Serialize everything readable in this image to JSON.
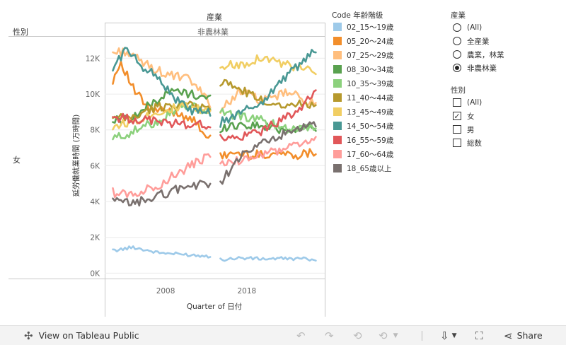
{
  "header": {
    "column_dim_title": "産業",
    "column_dim_value": "非農林業",
    "row_dim_title": "性別",
    "row_dim_value": "女"
  },
  "legend": {
    "title": "Code 年齢階級",
    "items": [
      {
        "label": "02_15～19歳",
        "color": "#9ecae9"
      },
      {
        "label": "05_20～24歳",
        "color": "#f28e2b"
      },
      {
        "label": "07_25～29歳",
        "color": "#ffbe7d"
      },
      {
        "label": "08_30～34歳",
        "color": "#59a14f"
      },
      {
        "label": "10_35～39歳",
        "color": "#8cd17d"
      },
      {
        "label": "11_40～44歳",
        "color": "#b6992d"
      },
      {
        "label": "13_45～49歳",
        "color": "#f1ce63"
      },
      {
        "label": "14_50～54歳",
        "color": "#499894"
      },
      {
        "label": "16_55～59歳",
        "color": "#e15759"
      },
      {
        "label": "17_60～64歳",
        "color": "#ff9d9a"
      },
      {
        "label": "18_65歳以上",
        "color": "#79706e"
      }
    ]
  },
  "filters": {
    "industry": {
      "title": "産業",
      "options": [
        {
          "label": "(All)",
          "selected": false
        },
        {
          "label": "全産業",
          "selected": false
        },
        {
          "label": "農業，林業",
          "selected": false
        },
        {
          "label": "非農林業",
          "selected": true
        }
      ]
    },
    "gender": {
      "title": "性別",
      "options": [
        {
          "label": "(All)",
          "checked": false
        },
        {
          "label": "女",
          "checked": true
        },
        {
          "label": "男",
          "checked": false
        },
        {
          "label": "総数",
          "checked": false
        }
      ]
    }
  },
  "toolbar": {
    "view_label": "View on Tableau Public",
    "share_label": "Share",
    "icons": [
      "tableau-logo-icon",
      "undo-icon",
      "redo-icon",
      "revert-icon",
      "dropdown-icon",
      "download-icon",
      "fullscreen-icon",
      "share-icon"
    ]
  },
  "chart_data": {
    "type": "line",
    "xlabel": "Quarter of 日付",
    "ylabel": "延労働就業時間 (万時間)",
    "x_tick_labels": [
      "2008",
      "2018"
    ],
    "x_ticks": [
      2008,
      2018
    ],
    "xlim": [
      2000.5,
      2027.6
    ],
    "ylim": [
      -300,
      13200
    ],
    "y_tick_values": [
      0,
      2000,
      4000,
      6000,
      8000,
      10000,
      12000
    ],
    "y_tick_labels": [
      "0K",
      "2K",
      "4K",
      "6K",
      "8K",
      "10K",
      "12K"
    ],
    "gap": [
      2013.5,
      2014.75
    ],
    "x_start": 2001.5,
    "x_end": 2026.5,
    "series": [
      {
        "name": "02_15～19歳",
        "color": "#9ecae9",
        "x": [
          2001.5,
          2004,
          2007,
          2010,
          2013.5,
          2014.75,
          2017,
          2020,
          2023,
          2026.5
        ],
        "y": [
          1250,
          1450,
          1150,
          1050,
          950,
          750,
          850,
          800,
          820,
          780
        ]
      },
      {
        "name": "05_20～24歳",
        "color": "#f28e2b",
        "x": [
          2001.5,
          2002.5,
          2004,
          2006,
          2009,
          2011,
          2013.5,
          2014.75,
          2016,
          2019,
          2022,
          2024,
          2026.5
        ],
        "y": [
          10800,
          11800,
          10300,
          9100,
          9000,
          8700,
          7500,
          6500,
          6700,
          6600,
          6700,
          6600,
          6800
        ]
      },
      {
        "name": "07_25～29歳",
        "color": "#ffbe7d",
        "x": [
          2001.5,
          2003,
          2005,
          2008,
          2011,
          2013.5,
          2014.75,
          2017,
          2020,
          2023,
          2026.5
        ],
        "y": [
          12300,
          12400,
          11800,
          11100,
          10800,
          9500,
          9000,
          10200,
          9600,
          10100,
          9400
        ]
      },
      {
        "name": "08_30～34歳",
        "color": "#59a14f",
        "x": [
          2001.5,
          2004,
          2007,
          2009,
          2011,
          2013.5,
          2014.75,
          2017,
          2020,
          2023,
          2026.5
        ],
        "y": [
          8500,
          8700,
          9700,
          10200,
          10000,
          9800,
          8100,
          8300,
          8200,
          8000,
          8200
        ]
      },
      {
        "name": "10_35～39歳",
        "color": "#8cd17d",
        "x": [
          2001.5,
          2004,
          2007,
          2010,
          2013.5,
          2014.75,
          2017,
          2020,
          2023,
          2026.5
        ],
        "y": [
          7500,
          7900,
          8500,
          9400,
          9000,
          9000,
          8800,
          8500,
          8100,
          8200
        ]
      },
      {
        "name": "11_40～44歳",
        "color": "#b6992d",
        "x": [
          2001.5,
          2004,
          2007,
          2010,
          2013.5,
          2014.75,
          2017,
          2020,
          2023,
          2026.5
        ],
        "y": [
          8600,
          8700,
          9300,
          9400,
          9200,
          10700,
          10300,
          9600,
          9400,
          9500
        ]
      },
      {
        "name": "13_45～49歳",
        "color": "#f1ce63",
        "x": [
          2001.5,
          2004,
          2007,
          2010,
          2013.5,
          2014.75,
          2017,
          2020,
          2023,
          2026.5
        ],
        "y": [
          8200,
          8500,
          9000,
          9300,
          9000,
          11600,
          11600,
          12100,
          11600,
          11200
        ]
      },
      {
        "name": "14_50～54歳",
        "color": "#499894",
        "x": [
          2001.5,
          2003,
          2005,
          2007,
          2009,
          2011,
          2013.5,
          2014.75,
          2017,
          2020,
          2023,
          2026.5
        ],
        "y": [
          11400,
          12500,
          11600,
          11000,
          9800,
          9100,
          8900,
          8400,
          8900,
          9600,
          11100,
          12400
        ]
      },
      {
        "name": "16_55～59歳",
        "color": "#e15759",
        "x": [
          2001.5,
          2004,
          2007,
          2010,
          2013.5,
          2014.75,
          2017,
          2020,
          2023,
          2026.5
        ],
        "y": [
          8700,
          8600,
          8500,
          8300,
          8300,
          7600,
          7500,
          8000,
          8700,
          10000
        ]
      },
      {
        "name": "17_60～64歳",
        "color": "#ff9d9a",
        "x": [
          2001.5,
          2004,
          2007,
          2010,
          2013.5,
          2014.75,
          2017,
          2020,
          2023,
          2026.5
        ],
        "y": [
          4500,
          4400,
          4900,
          5700,
          6600,
          6000,
          6300,
          6600,
          7000,
          7500
        ]
      },
      {
        "name": "18_65歳以上",
        "color": "#79706e",
        "x": [
          2001.5,
          2004,
          2007,
          2010,
          2013.5,
          2014.75,
          2017,
          2020,
          2023,
          2026.5
        ],
        "y": [
          4000,
          3900,
          4300,
          4800,
          5000,
          5100,
          6400,
          7300,
          7800,
          8300
        ]
      }
    ]
  }
}
